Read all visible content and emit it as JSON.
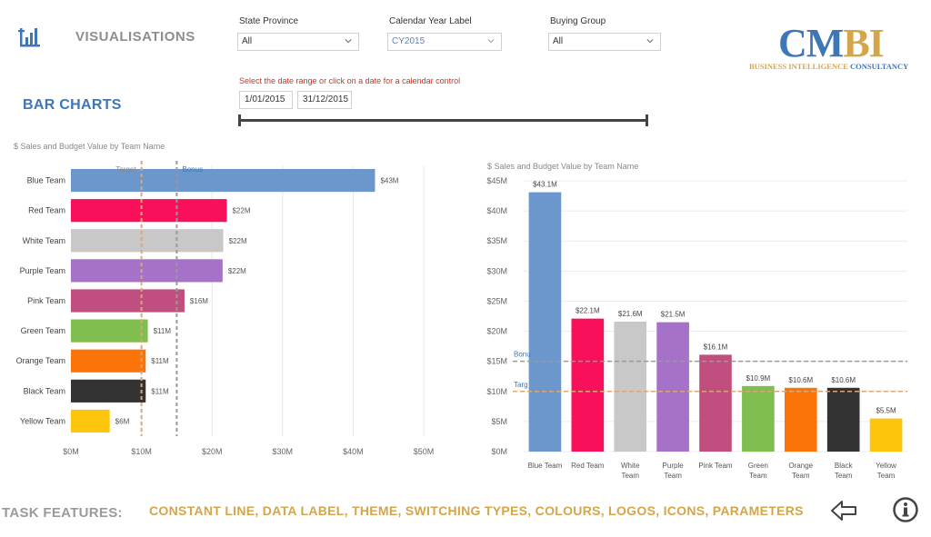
{
  "header": {
    "nav_title": "VISUALISATIONS",
    "page_title": "BAR CHARTS"
  },
  "filters": [
    {
      "label": "State Province",
      "value": "All"
    },
    {
      "label": "Calendar Year Label",
      "value": "CY2015"
    },
    {
      "label": "Buying Group",
      "value": "All"
    }
  ],
  "date_range": {
    "hint": "Select the date range or click on a date for a calendar control",
    "start": "1/01/2015",
    "end": "31/12/2015"
  },
  "logo": {
    "letters_1": "CM",
    "letters_2": "BI",
    "sub_1": "BUSINESS INTELLIGENCE ",
    "sub_2": "CONSULTANCY"
  },
  "footer": {
    "task_label": "TASK FEATURES:",
    "features": "CONSTANT LINE, DATA LABEL, THEME, SWITCHING TYPES, COLOURS, LOGOS, ICONS, PARAMETERS"
  },
  "colors": {
    "accent_blue": "#3f76b5",
    "logo_blue": "#3f76b5",
    "logo_gold": "#d4a64a",
    "target_line": "#d9a77a",
    "bonus_line": "#9a9a9a"
  },
  "chart_data": [
    {
      "type": "bar",
      "orientation": "horizontal",
      "title": "$ Sales and Budget Value by Team Name",
      "categories": [
        "Blue Team",
        "Red Team",
        "White Team",
        "Purple Team",
        "Pink Team",
        "Green Team",
        "Orange Team",
        "Black Team",
        "Yellow Team"
      ],
      "values": [
        43.1,
        22.1,
        21.6,
        21.5,
        16.1,
        10.9,
        10.6,
        10.6,
        5.5
      ],
      "labels": [
        "$43M",
        "$22M",
        "$22M",
        "$22M",
        "$16M",
        "$11M",
        "$11M",
        "$11M",
        "$6M"
      ],
      "colors": [
        "#6b97cc",
        "#f8105a",
        "#c8c8c8",
        "#a571c9",
        "#c04f7f",
        "#7fbe4f",
        "#fa7409",
        "#333333",
        "#fdc50b"
      ],
      "xlim": [
        0,
        50
      ],
      "ticks": [
        0,
        10,
        20,
        30,
        40,
        50
      ],
      "tick_labels": [
        "$0M",
        "$10M",
        "$20M",
        "$30M",
        "$40M",
        "$50M"
      ],
      "constant_lines": [
        {
          "name": "Target",
          "value": 10
        },
        {
          "name": "Bonus",
          "value": 15
        }
      ],
      "grid": true
    },
    {
      "type": "bar",
      "orientation": "vertical",
      "title": "$ Sales and Budget Value by Team Name",
      "categories": [
        "Blue Team",
        "Red Team",
        "White Team",
        "Purple Team",
        "Pink Team",
        "Green Team",
        "Orange Team",
        "Black Team",
        "Yellow Team"
      ],
      "values": [
        43.1,
        22.1,
        21.6,
        21.5,
        16.1,
        10.9,
        10.6,
        10.6,
        5.5
      ],
      "labels": [
        "$43.1M",
        "$22.1M",
        "$21.6M",
        "$21.5M",
        "$16.1M",
        "$10.9M",
        "$10.6M",
        "$10.6M",
        "$5.5M"
      ],
      "colors": [
        "#6b97cc",
        "#f8105a",
        "#c8c8c8",
        "#a571c9",
        "#c04f7f",
        "#7fbe4f",
        "#fa7409",
        "#333333",
        "#fdc50b"
      ],
      "ylim": [
        0,
        45
      ],
      "ticks": [
        0,
        5,
        10,
        15,
        20,
        25,
        30,
        35,
        40,
        45
      ],
      "tick_labels": [
        "$0M",
        "$5M",
        "$10M",
        "$15M",
        "$20M",
        "$25M",
        "$30M",
        "$35M",
        "$40M",
        "$45M"
      ],
      "constant_lines": [
        {
          "name": "Target",
          "short": "Targ",
          "value": 10
        },
        {
          "name": "Bonus",
          "short": "Bonu",
          "value": 15
        }
      ],
      "grid": true
    }
  ]
}
